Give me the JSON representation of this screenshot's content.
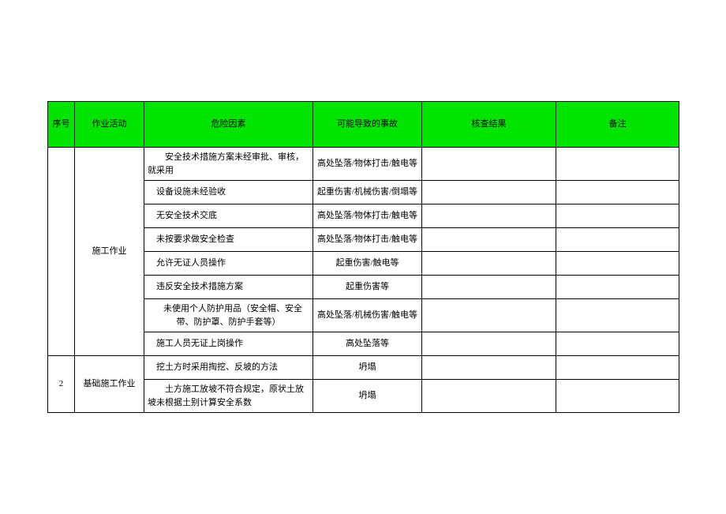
{
  "header_bg": "#00e400",
  "columns": [
    {
      "key": "seq",
      "label": "序号"
    },
    {
      "key": "act",
      "label": "作业活动"
    },
    {
      "key": "risk",
      "label": "危险因素"
    },
    {
      "key": "acc",
      "label": "可能导致的事故"
    },
    {
      "key": "res",
      "label": "核查结果"
    },
    {
      "key": "note",
      "label": "备注"
    }
  ],
  "groups": [
    {
      "seq": "",
      "activity": "施工作业",
      "rows": [
        {
          "risk": "　安全技术措施方案未经审批、审核，就采用",
          "risk_align": "left",
          "acc": "高处坠落/物体打击/触电等"
        },
        {
          "risk": "设备设施未经验收",
          "risk_align": "left",
          "acc": "起重伤害/机械伤害/倒塌等"
        },
        {
          "risk": "无安全技术交底",
          "risk_align": "left",
          "acc": "高处坠落/物体打击/触电等"
        },
        {
          "risk": "未按要求做安全检查",
          "risk_align": "left",
          "acc": "高处坠落/物体打击/触电等"
        },
        {
          "risk": "允许无证人员操作",
          "risk_align": "left",
          "acc": "起重伤害/触电等"
        },
        {
          "risk": "违反安全技术措施方案",
          "risk_align": "left",
          "acc": "起重伤害等"
        },
        {
          "risk": "　未使用个人防护用品（安全帽、安全带、防护罩、防护手套等）",
          "risk_align": "center",
          "acc": "高处坠落/机械伤害/触电等"
        },
        {
          "risk": "施工人员无证上岗操作",
          "risk_align": "left",
          "acc": "高处坠落等"
        }
      ]
    },
    {
      "seq": "2",
      "activity": "基础施工作业",
      "rows": [
        {
          "risk": "挖土方时采用掏挖、反坡的方法",
          "risk_align": "left",
          "acc": "坍塌"
        },
        {
          "risk": "　土方施工放坡不符合规定，原状土放坡未根据土别计算安全系数",
          "risk_align": "left",
          "acc": "坍塌"
        }
      ]
    }
  ]
}
